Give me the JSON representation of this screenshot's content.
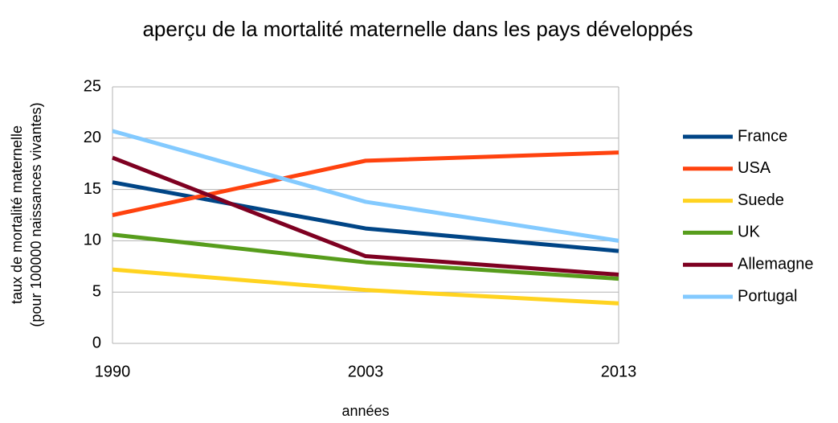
{
  "chart_data": {
    "type": "line",
    "title": "aperçu de la mortalité maternelle dans les pays développés",
    "xlabel": "années",
    "ylabel": [
      "taux de mortalité maternelle",
      "(pour 100000 naissances vivantes)"
    ],
    "categories": [
      "1990",
      "2003",
      "2013"
    ],
    "series": [
      {
        "name": "France",
        "color": "#004586",
        "values": [
          15.7,
          11.2,
          9.0
        ]
      },
      {
        "name": "USA",
        "color": "#ff420e",
        "values": [
          12.5,
          17.8,
          18.6
        ]
      },
      {
        "name": "Suede",
        "color": "#ffd320",
        "values": [
          7.2,
          5.2,
          3.9
        ]
      },
      {
        "name": "UK",
        "color": "#579d1c",
        "values": [
          10.6,
          7.9,
          6.3
        ]
      },
      {
        "name": "Allemagne",
        "color": "#7e0021",
        "values": [
          18.1,
          8.5,
          6.7
        ]
      },
      {
        "name": "Portugal",
        "color": "#83caff",
        "values": [
          20.7,
          13.8,
          10.0
        ]
      }
    ],
    "ylim": [
      0,
      25
    ],
    "yticks": [
      0,
      5,
      10,
      15,
      20,
      25
    ],
    "grid": true,
    "legend": "right"
  }
}
